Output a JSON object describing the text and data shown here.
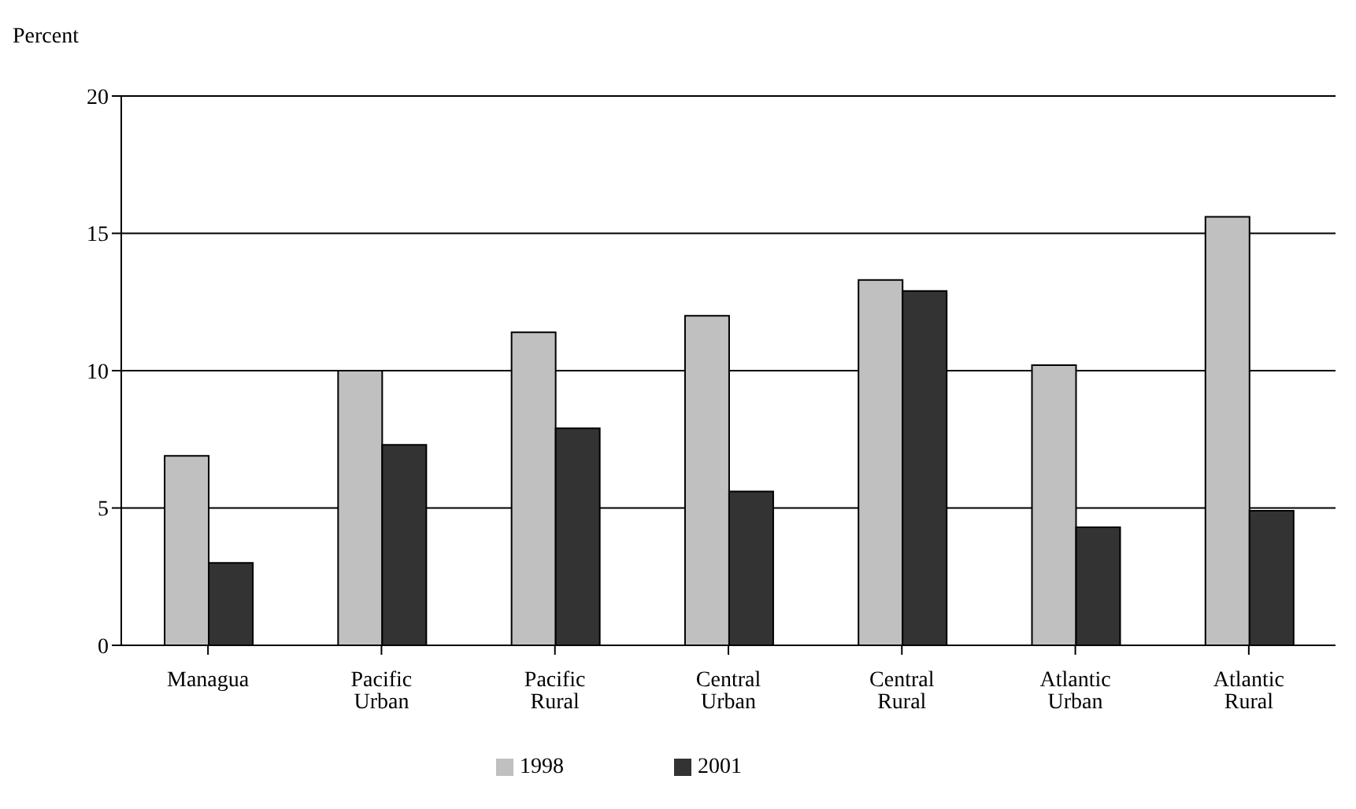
{
  "chart_data": {
    "type": "bar",
    "ylabel": "Percent",
    "categories": [
      "Managua",
      "Pacific Urban",
      "Pacific Rural",
      "Central Urban",
      "Central Rural",
      "Atlantic Urban",
      "Atlantic Rural"
    ],
    "series": [
      {
        "name": "1998",
        "color": "#c0c0c0",
        "values": [
          6.9,
          10.0,
          11.4,
          12.0,
          13.3,
          10.2,
          15.6
        ]
      },
      {
        "name": "2001",
        "color": "#333333",
        "values": [
          3.0,
          7.3,
          7.9,
          5.6,
          12.9,
          4.3,
          4.9
        ]
      }
    ],
    "ylim": [
      0,
      20
    ],
    "yticks": [
      0,
      5,
      10,
      15,
      20
    ],
    "grid": "y",
    "legend": "bottom"
  }
}
